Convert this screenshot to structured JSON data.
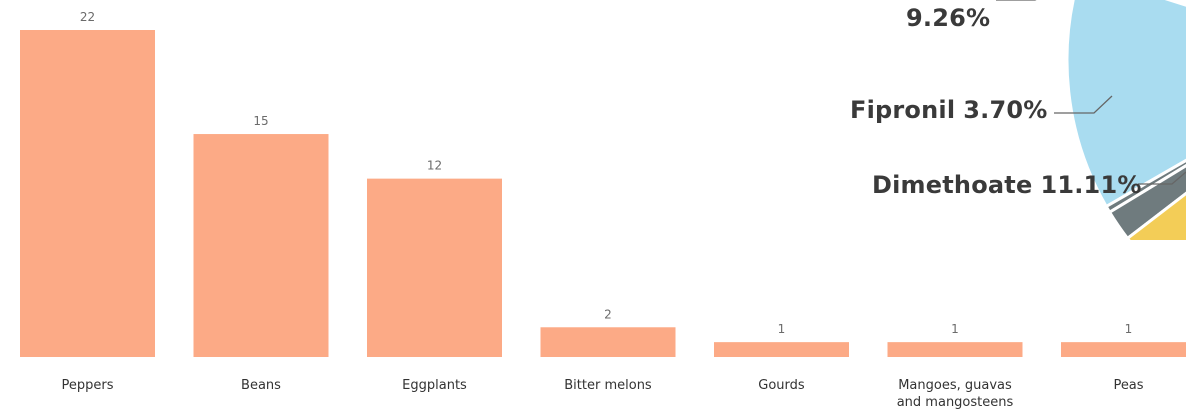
{
  "chart_data": [
    {
      "type": "bar",
      "categories": [
        "Peppers",
        "Beans",
        "Eggplants",
        "Bitter melons",
        "Gourds",
        "Mangoes, guavas and mangosteens",
        "Peas"
      ],
      "category_lines": [
        [
          "Peppers"
        ],
        [
          "Beans"
        ],
        [
          "Eggplants"
        ],
        [
          "Bitter melons"
        ],
        [
          "Gourds"
        ],
        [
          "Mangoes, guavas",
          "and mangosteens"
        ],
        [
          "Peas"
        ]
      ],
      "values": [
        22,
        15,
        12,
        2,
        1,
        1,
        1
      ],
      "data_labels": [
        "22",
        "15",
        "12",
        "2",
        "1",
        "1",
        "1"
      ],
      "ylim": [
        0,
        22
      ],
      "bar_color": "#fcaa86",
      "grid": false
    },
    {
      "type": "pie",
      "visible_labels": [
        {
          "name": "",
          "pct": "9.26%"
        },
        {
          "name": "Fipronil",
          "pct": "3.70%"
        },
        {
          "name": "Dimethoate",
          "pct": "11.11%"
        }
      ],
      "slice_colors": [
        "#a9dcf0",
        "#6f7b7e",
        "#f3cd57",
        "#fc8a7e"
      ]
    }
  ]
}
